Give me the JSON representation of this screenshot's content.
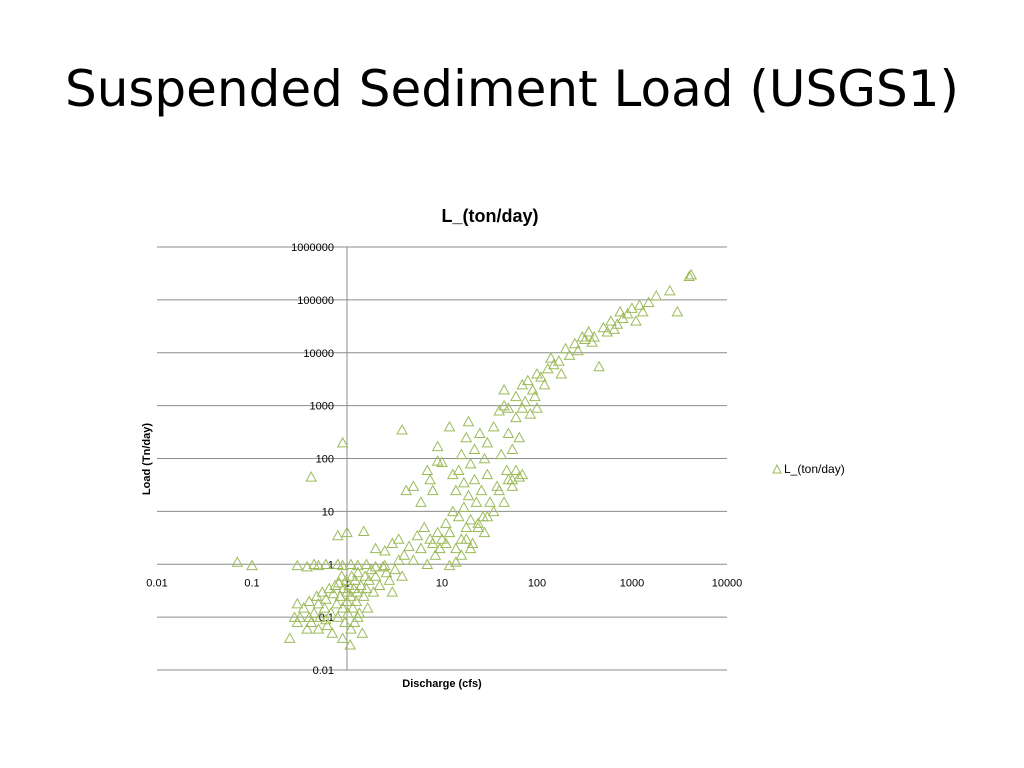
{
  "slide": {
    "title": "Suspended Sediment Load (USGS1)"
  },
  "chart_data": {
    "type": "scatter",
    "title": "L_(ton/day)",
    "xlabel": "Discharge (cfs)",
    "ylabel": "Load (Tn/day)",
    "x_scale": "log",
    "y_scale": "log",
    "xlim": [
      0.01,
      10000
    ],
    "ylim": [
      0.01,
      1000000
    ],
    "x_ticks": [
      "0.01",
      "0.1",
      "1",
      "10",
      "100",
      "1000",
      "10000"
    ],
    "y_ticks": [
      "0.01",
      "0.1",
      "1",
      "10",
      "100",
      "1000",
      "10000",
      "100000",
      "1000000"
    ],
    "grid": "horizontal",
    "legend_position": "right",
    "marker": "open-triangle",
    "color": "#9BBB59",
    "series": [
      {
        "name": "L_(ton/day)",
        "points": [
          [
            0.07,
            1.1
          ],
          [
            0.1,
            0.95
          ],
          [
            0.3,
            0.95
          ],
          [
            0.38,
            0.9
          ],
          [
            0.45,
            1.0
          ],
          [
            0.5,
            0.95
          ],
          [
            0.6,
            1.0
          ],
          [
            0.8,
            1.0
          ],
          [
            0.9,
            0.95
          ],
          [
            1.1,
            1.0
          ],
          [
            1.3,
            0.95
          ],
          [
            1.6,
            1.0
          ],
          [
            2.0,
            0.9
          ],
          [
            2.5,
            0.95
          ],
          [
            0.42,
            45
          ],
          [
            0.9,
            200
          ],
          [
            3.8,
            350
          ],
          [
            4.2,
            25
          ],
          [
            0.25,
            0.04
          ],
          [
            0.28,
            0.1
          ],
          [
            0.3,
            0.18
          ],
          [
            0.32,
            0.1
          ],
          [
            0.35,
            0.15
          ],
          [
            0.38,
            0.06
          ],
          [
            0.4,
            0.2
          ],
          [
            0.42,
            0.08
          ],
          [
            0.45,
            0.12
          ],
          [
            0.48,
            0.25
          ],
          [
            0.5,
            0.18
          ],
          [
            0.52,
            0.1
          ],
          [
            0.55,
            0.3
          ],
          [
            0.58,
            0.15
          ],
          [
            0.6,
            0.22
          ],
          [
            0.62,
            0.07
          ],
          [
            0.65,
            0.35
          ],
          [
            0.68,
            0.12
          ],
          [
            0.7,
            0.05
          ],
          [
            0.72,
            0.28
          ],
          [
            0.75,
            0.4
          ],
          [
            0.78,
            0.18
          ],
          [
            0.8,
            0.1
          ],
          [
            0.82,
            0.45
          ],
          [
            0.85,
            0.25
          ],
          [
            0.88,
            0.6
          ],
          [
            0.9,
            0.15
          ],
          [
            0.92,
            0.35
          ],
          [
            0.95,
            0.08
          ],
          [
            0.98,
            0.5
          ],
          [
            1.0,
            0.2
          ],
          [
            1.0,
            0.3
          ],
          [
            1.02,
            0.12
          ],
          [
            1.05,
            0.4
          ],
          [
            1.08,
            0.03
          ],
          [
            1.1,
            0.25
          ],
          [
            1.12,
            0.6
          ],
          [
            1.15,
            0.15
          ],
          [
            1.18,
            0.35
          ],
          [
            1.2,
            0.08
          ],
          [
            1.22,
            0.5
          ],
          [
            1.25,
            0.2
          ],
          [
            1.28,
            0.3
          ],
          [
            1.3,
            0.7
          ],
          [
            1.35,
            0.12
          ],
          [
            1.4,
            0.4
          ],
          [
            1.45,
            0.05
          ],
          [
            1.5,
            0.25
          ],
          [
            1.55,
            0.6
          ],
          [
            1.6,
            0.35
          ],
          [
            1.65,
            0.15
          ],
          [
            1.7,
            0.5
          ],
          [
            1.8,
            0.8
          ],
          [
            1.9,
            0.3
          ],
          [
            2.0,
            0.6
          ],
          [
            2.2,
            0.4
          ],
          [
            2.4,
            0.9
          ],
          [
            2.6,
            0.7
          ],
          [
            2.8,
            0.5
          ],
          [
            3.0,
            0.3
          ],
          [
            3.2,
            0.8
          ],
          [
            3.5,
            1.2
          ],
          [
            3.8,
            0.6
          ],
          [
            0.3,
            0.08
          ],
          [
            0.4,
            0.1
          ],
          [
            0.5,
            0.06
          ],
          [
            0.6,
            0.09
          ],
          [
            0.9,
            0.04
          ],
          [
            1.1,
            0.06
          ],
          [
            1.3,
            0.1
          ],
          [
            0.8,
            3.5
          ],
          [
            1.0,
            4.0
          ],
          [
            1.5,
            4.2
          ],
          [
            2.0,
            2.0
          ],
          [
            2.5,
            1.8
          ],
          [
            3.0,
            2.5
          ],
          [
            3.5,
            3.0
          ],
          [
            4.0,
            1.5
          ],
          [
            4.5,
            2.2
          ],
          [
            5.0,
            1.2
          ],
          [
            5.5,
            3.5
          ],
          [
            6.0,
            2.0
          ],
          [
            6.5,
            5.0
          ],
          [
            7.0,
            1.0
          ],
          [
            7.5,
            3.0
          ],
          [
            8.0,
            2.5
          ],
          [
            8.5,
            1.5
          ],
          [
            9.0,
            4.0
          ],
          [
            9.5,
            2.0
          ],
          [
            10.0,
            3.0
          ],
          [
            5.0,
            30
          ],
          [
            6.0,
            15
          ],
          [
            7.0,
            60
          ],
          [
            7.5,
            40
          ],
          [
            8.0,
            25
          ],
          [
            9.0,
            90
          ],
          [
            9.0,
            170
          ],
          [
            10.0,
            85
          ],
          [
            11.0,
            6.0
          ],
          [
            11.0,
            2.5
          ],
          [
            12.0,
            4.0
          ],
          [
            12.0,
            400
          ],
          [
            13.0,
            10.0
          ],
          [
            13.0,
            50
          ],
          [
            14.0,
            2.0
          ],
          [
            14.0,
            25
          ],
          [
            15.0,
            8.0
          ],
          [
            15.0,
            60
          ],
          [
            16.0,
            3.0
          ],
          [
            16.0,
            120
          ],
          [
            17.0,
            12.0
          ],
          [
            17.0,
            35
          ],
          [
            18.0,
            5.0
          ],
          [
            18.0,
            250
          ],
          [
            19.0,
            20.0
          ],
          [
            19.0,
            500
          ],
          [
            20.0,
            7.0
          ],
          [
            20.0,
            80
          ],
          [
            21.0,
            2.5
          ],
          [
            22.0,
            40
          ],
          [
            22.0,
            150
          ],
          [
            23.0,
            15.0
          ],
          [
            24.0,
            6.0
          ],
          [
            25.0,
            300
          ],
          [
            26.0,
            25
          ],
          [
            27.0,
            8.0
          ],
          [
            28.0,
            100
          ],
          [
            30.0,
            50
          ],
          [
            30.0,
            200
          ],
          [
            32.0,
            15.0
          ],
          [
            35.0,
            400
          ],
          [
            38.0,
            30
          ],
          [
            40.0,
            800
          ],
          [
            42.0,
            120
          ],
          [
            45.0,
            1000
          ],
          [
            45.0,
            2000
          ],
          [
            48.0,
            60
          ],
          [
            50.0,
            300
          ],
          [
            50.0,
            900
          ],
          [
            55.0,
            150
          ],
          [
            55.0,
            40
          ],
          [
            60.0,
            1500
          ],
          [
            60.0,
            600
          ],
          [
            65.0,
            250
          ],
          [
            70.0,
            2500
          ],
          [
            70.0,
            900
          ],
          [
            75.0,
            1200
          ],
          [
            80.0,
            3000
          ],
          [
            85.0,
            700
          ],
          [
            90.0,
            2000
          ],
          [
            95.0,
            1500
          ],
          [
            100.0,
            4000
          ],
          [
            100.0,
            900
          ],
          [
            110.0,
            3500
          ],
          [
            120.0,
            2500
          ],
          [
            130.0,
            5000
          ],
          [
            140.0,
            8000
          ],
          [
            150.0,
            6000
          ],
          [
            170.0,
            7000
          ],
          [
            180.0,
            4000
          ],
          [
            200.0,
            12000
          ],
          [
            220.0,
            9000
          ],
          [
            250.0,
            15000
          ],
          [
            270.0,
            11000
          ],
          [
            300.0,
            20000
          ],
          [
            320.0,
            18000
          ],
          [
            350.0,
            25000
          ],
          [
            380.0,
            16000
          ],
          [
            400.0,
            20000
          ],
          [
            450.0,
            5500
          ],
          [
            500.0,
            30000
          ],
          [
            550.0,
            25000
          ],
          [
            600.0,
            40000
          ],
          [
            650.0,
            28000
          ],
          [
            700.0,
            35000
          ],
          [
            750.0,
            60000
          ],
          [
            800.0,
            45000
          ],
          [
            900.0,
            55000
          ],
          [
            1000.0,
            70000
          ],
          [
            1100.0,
            40000
          ],
          [
            1200.0,
            80000
          ],
          [
            1300.0,
            60000
          ],
          [
            1500.0,
            90000
          ],
          [
            1800.0,
            120000
          ],
          [
            2500.0,
            150000
          ],
          [
            3000.0,
            60000
          ],
          [
            4000.0,
            280000
          ],
          [
            4200.0,
            300000
          ],
          [
            12.0,
            0.95
          ],
          [
            14.0,
            1.1
          ],
          [
            16.0,
            1.5
          ],
          [
            18.0,
            3.0
          ],
          [
            20.0,
            2.0
          ],
          [
            24.0,
            5.0
          ],
          [
            28.0,
            4.0
          ],
          [
            30.0,
            8.0
          ],
          [
            35.0,
            10.0
          ],
          [
            40.0,
            25.0
          ],
          [
            45.0,
            15.0
          ],
          [
            50.0,
            40.0
          ],
          [
            55.0,
            30.0
          ],
          [
            60.0,
            60.0
          ],
          [
            65.0,
            45.0
          ],
          [
            70.0,
            50.0
          ]
        ]
      }
    ]
  }
}
